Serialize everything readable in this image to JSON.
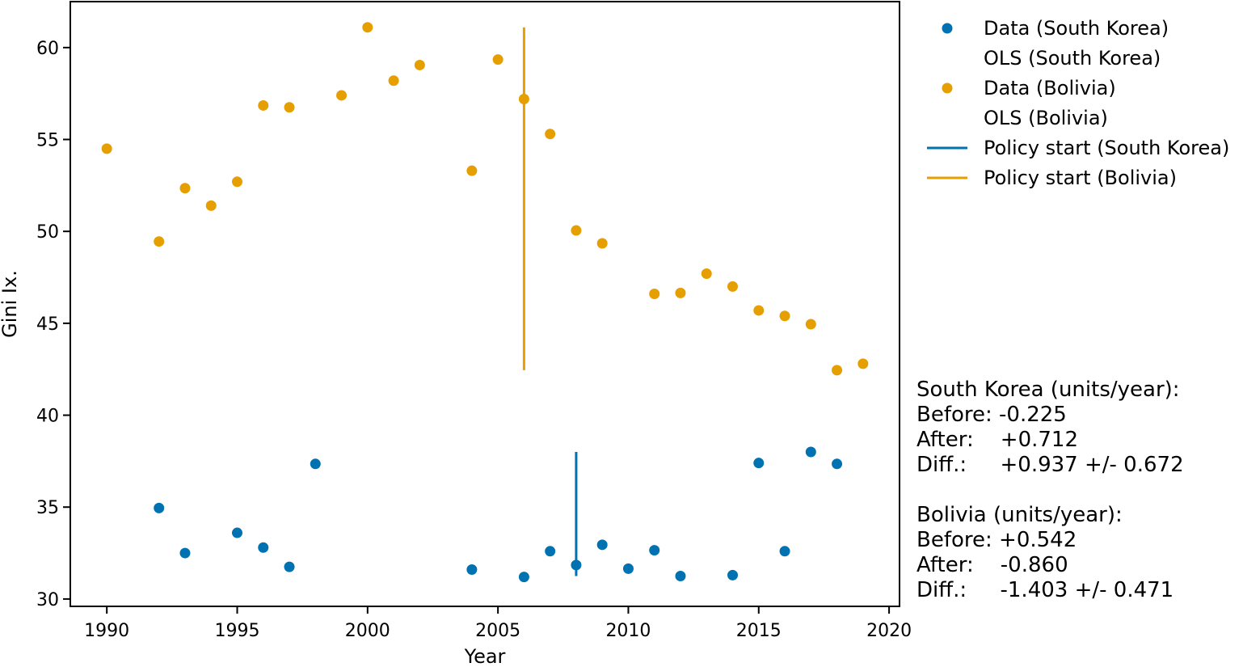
{
  "chart_data": {
    "type": "scatter",
    "title": "",
    "xlabel": "Year",
    "ylabel": "Gini Ix.",
    "xlim": [
      1988.6,
      2020.4
    ],
    "ylim": [
      29.6,
      62.5
    ],
    "xticks": [
      1990,
      1995,
      2000,
      2005,
      2010,
      2015,
      2020
    ],
    "yticks": [
      30,
      35,
      40,
      45,
      50,
      55,
      60
    ],
    "grid": false,
    "legend_position": "outside-right-top",
    "legend": [
      {
        "label": "Data (South Korea)",
        "kind": "marker",
        "color": "#0072B2"
      },
      {
        "label": "OLS (South Korea)",
        "kind": "none",
        "color": "#0072B2"
      },
      {
        "label": "Data (Bolivia)",
        "kind": "marker",
        "color": "#E69F00"
      },
      {
        "label": "OLS (Bolivia)",
        "kind": "none",
        "color": "#E69F00"
      },
      {
        "label": "Policy start (South Korea)",
        "kind": "line",
        "color": "#0072B2"
      },
      {
        "label": "Policy start (Bolivia)",
        "kind": "line",
        "color": "#E69F00"
      }
    ],
    "series": [
      {
        "name": "Data (South Korea)",
        "color": "#0072B2",
        "x": [
          1992,
          1993,
          1995,
          1996,
          1997,
          1998,
          2004,
          2006,
          2007,
          2008,
          2009,
          2010,
          2011,
          2012,
          2014,
          2015,
          2016,
          2017,
          2018
        ],
        "y": [
          34.95,
          32.5,
          33.6,
          32.8,
          31.75,
          37.35,
          31.6,
          31.2,
          32.6,
          31.85,
          32.95,
          31.65,
          32.65,
          31.25,
          31.3,
          37.4,
          32.6,
          38.0,
          37.35
        ]
      },
      {
        "name": "Data (Bolivia)",
        "color": "#E69F00",
        "x": [
          1990,
          1992,
          1993,
          1994,
          1995,
          1996,
          1997,
          1999,
          2000,
          2001,
          2002,
          2004,
          2005,
          2006,
          2007,
          2008,
          2009,
          2011,
          2012,
          2013,
          2014,
          2015,
          2016,
          2017,
          2018,
          2019
        ],
        "y": [
          54.5,
          49.45,
          52.35,
          51.4,
          52.7,
          56.85,
          56.75,
          57.4,
          61.1,
          58.2,
          59.05,
          53.3,
          59.35,
          57.2,
          55.3,
          50.05,
          49.35,
          46.6,
          46.65,
          47.7,
          47.0,
          45.7,
          45.4,
          44.95,
          42.45,
          42.8
        ]
      }
    ],
    "policy_lines": [
      {
        "name": "Policy start (South Korea)",
        "color": "#0072B2",
        "x": 2008,
        "y0": 31.25,
        "y1": 38.0
      },
      {
        "name": "Policy start (Bolivia)",
        "color": "#E69F00",
        "x": 2006,
        "y0": 42.45,
        "y1": 61.1
      }
    ],
    "annotations": [
      "South Korea (units/year):",
      "Before: -0.225",
      "After:    +0.712",
      "Diff.:     +0.937 +/- 0.672",
      "",
      "Bolivia (units/year):",
      "Before: +0.542",
      "After:    -0.860",
      "Diff.:     -1.403 +/- 0.471"
    ]
  }
}
